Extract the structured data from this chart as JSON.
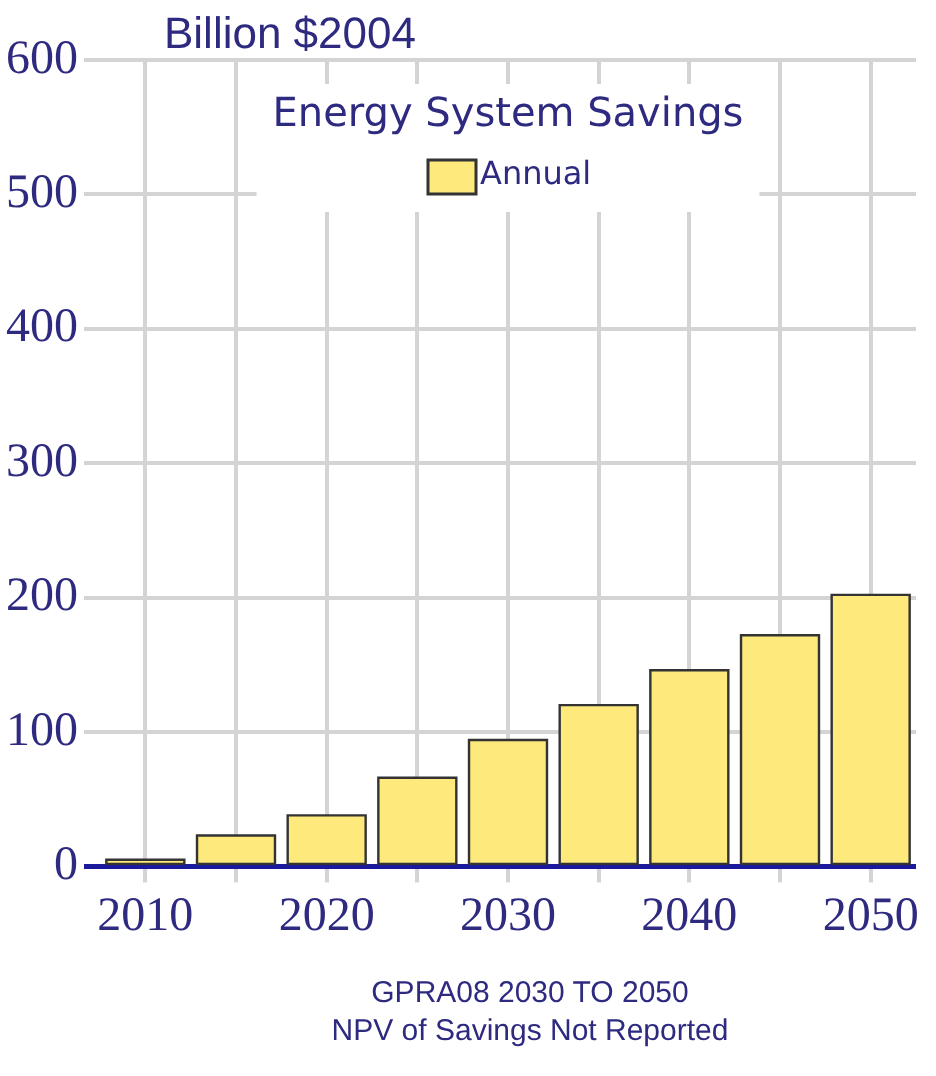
{
  "chart_data": {
    "type": "bar",
    "title": "Energy System Savings",
    "ylabel": "Billion $2004",
    "x": [
      2010,
      2015,
      2020,
      2025,
      2030,
      2035,
      2040,
      2045,
      2050
    ],
    "series": [
      {
        "name": "Annual",
        "color": "#fde97c",
        "values": [
          5,
          23,
          38,
          66,
          94,
          120,
          146,
          172,
          202
        ]
      }
    ],
    "xlim": [
      2007.5,
      2052.5
    ],
    "xticks": [
      2010,
      {
        "value": 2015,
        "label": null
      },
      2020,
      {
        "value": 2025,
        "label": null
      },
      2030,
      {
        "value": 2035,
        "label": null
      },
      2040,
      {
        "value": 2045,
        "label": null
      },
      2050
    ],
    "ylim": [
      0,
      600
    ],
    "yticks": [
      0,
      100,
      200,
      300,
      400,
      500,
      600
    ],
    "grid": true,
    "legend": "top",
    "annotations": [
      "GPRA08 2030 TO 2050",
      "NPV of Savings Not Reported"
    ]
  }
}
